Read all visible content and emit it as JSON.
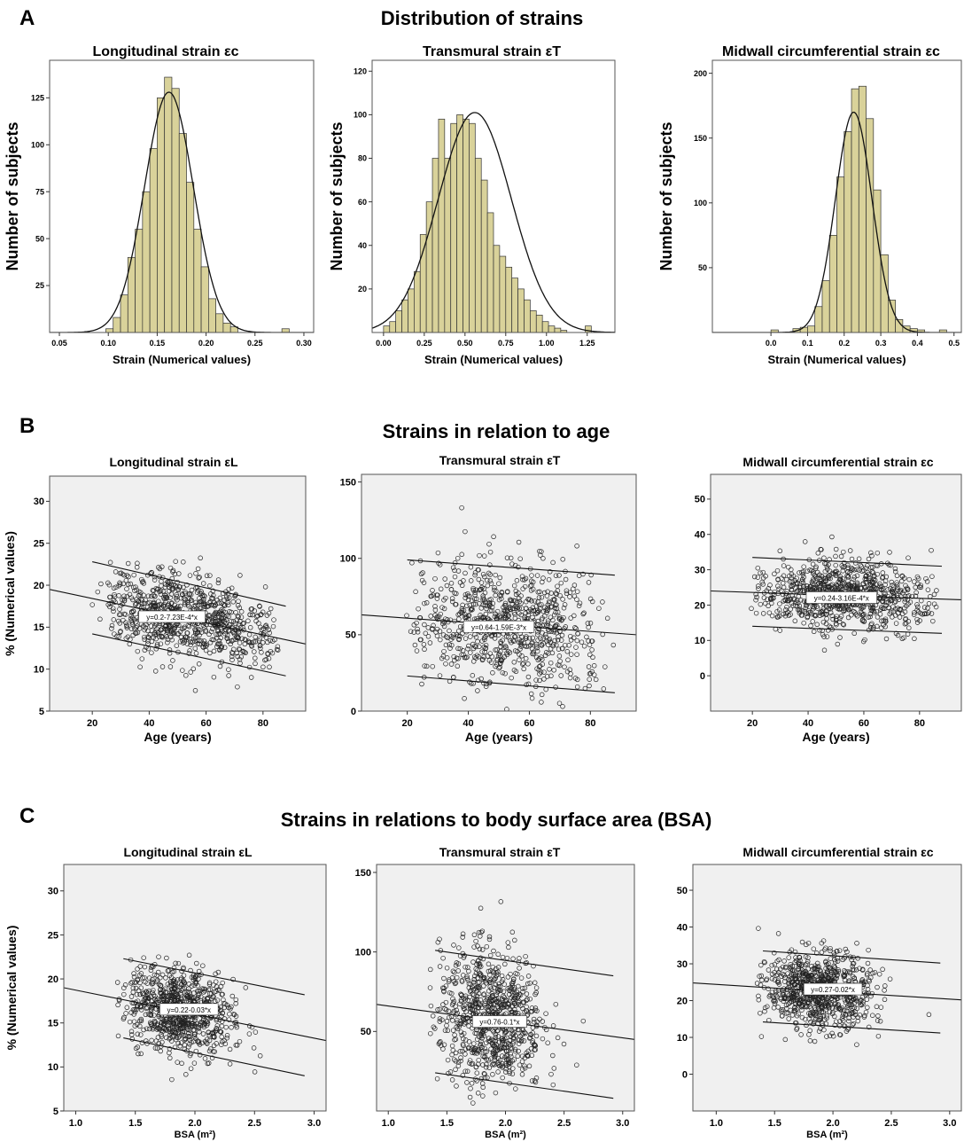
{
  "panels": [
    {
      "letter": "A",
      "title": "Distribution of strains",
      "charts": [
        {
          "title": "Longitudinal strain εc",
          "chart_data": {
            "type": "bar",
            "ylabel": "Number of subjects",
            "xlabel": "Strain  (Numerical values)",
            "xlim": [
              0.04,
              0.31
            ],
            "ylim": [
              0,
              145
            ],
            "xticks": [
              0.05,
              0.1,
              0.15,
              0.2,
              0.25,
              0.3
            ],
            "xtick_labels": [
              "0.05",
              "0.10",
              "0.15",
              "0.20",
              "0.25",
              "0.30"
            ],
            "yticks": [
              25,
              50,
              75,
              100,
              125
            ],
            "ytick_labels": [
              "25",
              "50",
              "75",
              "100",
              "125"
            ],
            "bin_width": 0.0075,
            "bin_start": 0.0975,
            "values": [
              2,
              8,
              20,
              40,
              55,
              75,
              98,
              125,
              136,
              130,
              106,
              80,
              55,
              35,
              18,
              10,
              5,
              3,
              0,
              0,
              0,
              0,
              0,
              0,
              2
            ],
            "curve": {
              "mean": 0.162,
              "sd": 0.025,
              "peak": 128
            }
          }
        },
        {
          "title": "Transmural strain εT",
          "chart_data": {
            "type": "bar",
            "ylabel": "Number of subjects",
            "xlabel": "Strain  (Numerical values)",
            "xlim": [
              -0.07,
              1.42
            ],
            "ylim": [
              0,
              125
            ],
            "xticks": [
              0,
              0.25,
              0.5,
              0.75,
              1.0,
              1.25
            ],
            "xtick_labels": [
              "0.00",
              "0.25",
              "0.50",
              "0.75",
              "1.00",
              "1.25"
            ],
            "yticks": [
              20,
              40,
              60,
              80,
              100,
              120
            ],
            "ytick_labels": [
              "20",
              "40",
              "60",
              "80",
              "100",
              "120"
            ],
            "bin_width": 0.0375,
            "bin_start": 0.0,
            "values": [
              3,
              5,
              10,
              15,
              20,
              28,
              45,
              60,
              80,
              98,
              80,
              96,
              100,
              98,
              96,
              80,
              70,
              55,
              40,
              35,
              30,
              25,
              20,
              15,
              10,
              8,
              5,
              3,
              2,
              1,
              0,
              0,
              0,
              3
            ],
            "curve": {
              "mean": 0.56,
              "sd": 0.225,
              "peak": 101
            }
          }
        },
        {
          "title": "Midwall circumferential strain  εc",
          "chart_data": {
            "type": "bar",
            "ylabel": "Number of subjects",
            "xlabel": "Strain  (Numerical values)",
            "xlim": [
              -0.16,
              0.52
            ],
            "ylim": [
              0,
              210
            ],
            "xticks": [
              0,
              0.1,
              0.2,
              0.3,
              0.4,
              0.5
            ],
            "xtick_labels": [
              "0.0",
              "0.1",
              "0.2",
              "0.3",
              "0.4",
              "0.5"
            ],
            "yticks": [
              50,
              100,
              150,
              200
            ],
            "ytick_labels": [
              "50",
              "100",
              "150",
              "200"
            ],
            "bin_width": 0.02,
            "bin_start": 0.0,
            "values": [
              2,
              0,
              0,
              3,
              4,
              5,
              20,
              40,
              75,
              120,
              155,
              188,
              190,
              165,
              110,
              60,
              25,
              10,
              5,
              3,
              2,
              0,
              0,
              2
            ],
            "curve": {
              "mean": 0.226,
              "sd": 0.05,
              "peak": 170
            }
          }
        }
      ]
    },
    {
      "letter": "B",
      "title": "Strains in relation to age",
      "charts": [
        {
          "title": "Longitudinal strain εL",
          "chart_data": {
            "type": "scatter",
            "ylabel": "% (Numerical values)",
            "xlabel": "Age (years)",
            "xlim": [
              5,
              95
            ],
            "ylim": [
              5,
              33
            ],
            "xticks": [
              20,
              40,
              60,
              80
            ],
            "xtick_labels": [
              "20",
              "40",
              "60",
              "80"
            ],
            "yticks": [
              5,
              10,
              15,
              20,
              25,
              30
            ],
            "ytick_labels": [
              "5",
              "10",
              "15",
              "20",
              "25",
              "30"
            ],
            "x_range": [
              19,
              88
            ],
            "x_mean": 50,
            "x_sd": 16,
            "y_sd": 2.4,
            "n_points": 850,
            "lines": [
              [
                5,
                19.5,
                95,
                13
              ],
              [
                20,
                22.8,
                88,
                17.5
              ],
              [
                20,
                14.2,
                88,
                9.2
              ]
            ],
            "equation": "y=0.2-7.23E-4*x",
            "equation_pos": [
              48,
              16.2
            ]
          }
        },
        {
          "title": "Transmural strain εT",
          "chart_data": {
            "type": "scatter",
            "ylabel": "",
            "xlabel": "Age (years)",
            "xlim": [
              5,
              95
            ],
            "ylim": [
              0,
              155
            ],
            "xticks": [
              20,
              40,
              60,
              80
            ],
            "xtick_labels": [
              "20",
              "40",
              "60",
              "80"
            ],
            "yticks": [
              0,
              50,
              100,
              150
            ],
            "ytick_labels": [
              "0",
              "50",
              "100",
              "150"
            ],
            "x_range": [
              19,
              88
            ],
            "x_mean": 50,
            "x_sd": 16,
            "y_sd": 21,
            "n_points": 850,
            "lines": [
              [
                5,
                63,
                95,
                50
              ],
              [
                20,
                99,
                88,
                89
              ],
              [
                20,
                23,
                88,
                12
              ]
            ],
            "equation": "y=0.64-1.59E-3*x",
            "equation_pos": [
              50,
              55
            ]
          }
        },
        {
          "title": "Midwall circumferential strain εc",
          "chart_data": {
            "type": "scatter",
            "ylabel": "",
            "xlabel": "Age (years)",
            "xlim": [
              5,
              95
            ],
            "ylim": [
              -10,
              57
            ],
            "xticks": [
              20,
              40,
              60,
              80
            ],
            "xtick_labels": [
              "20",
              "40",
              "60",
              "80"
            ],
            "yticks": [
              0,
              10,
              20,
              30,
              40,
              50
            ],
            "ytick_labels": [
              "0",
              "10",
              "20",
              "30",
              "40",
              "50"
            ],
            "x_range": [
              19,
              88
            ],
            "x_mean": 50,
            "x_sd": 16,
            "y_sd": 5,
            "n_points": 850,
            "lines": [
              [
                5,
                24,
                95,
                21.5
              ],
              [
                20,
                33.5,
                88,
                31
              ],
              [
                20,
                14,
                88,
                12
              ]
            ],
            "equation": "y=0.24-3.16E-4*x",
            "equation_pos": [
              52,
              22
            ]
          }
        }
      ]
    },
    {
      "letter": "C",
      "title": "Strains in relations to body surface area (BSA)",
      "charts": [
        {
          "title": "Longitudinal strain εL",
          "chart_data": {
            "type": "scatter",
            "ylabel": "% (Numerical values)",
            "xlabel": "BSA (m²)",
            "xlim": [
              0.9,
              3.1
            ],
            "ylim": [
              5,
              33
            ],
            "xticks": [
              1.0,
              1.5,
              2.0,
              2.5,
              3.0
            ],
            "xtick_labels": [
              "1.0",
              "1.5",
              "2.0",
              "2.5",
              "3.0"
            ],
            "yticks": [
              5,
              10,
              15,
              20,
              25,
              30
            ],
            "ytick_labels": [
              "5",
              "10",
              "15",
              "20",
              "25",
              "30"
            ],
            "x_range": [
              1.35,
              2.92
            ],
            "x_mean": 1.88,
            "x_sd": 0.22,
            "y_sd": 2.4,
            "n_points": 850,
            "lines": [
              [
                0.9,
                19,
                3.1,
                13
              ],
              [
                1.4,
                22.3,
                2.92,
                18.2
              ],
              [
                1.4,
                13.3,
                2.92,
                9
              ]
            ],
            "equation": "y=0.22-0.03*x",
            "equation_pos": [
              1.95,
              16.5
            ]
          }
        },
        {
          "title": "Transmural strain εT",
          "chart_data": {
            "type": "scatter",
            "ylabel": "",
            "xlabel": "BSA (m²)",
            "xlim": [
              0.9,
              3.1
            ],
            "ylim": [
              0,
              155
            ],
            "xticks": [
              1.0,
              1.5,
              2.0,
              2.5,
              3.0
            ],
            "xtick_labels": [
              "1.0",
              "1.5",
              "2.0",
              "2.5",
              "3.0"
            ],
            "yticks": [
              50,
              100,
              150
            ],
            "ytick_labels": [
              "50",
              "100",
              "150"
            ],
            "x_range": [
              1.35,
              2.92
            ],
            "x_mean": 1.88,
            "x_sd": 0.22,
            "y_sd": 21,
            "n_points": 850,
            "lines": [
              [
                0.9,
                67,
                3.1,
                45
              ],
              [
                1.4,
                101,
                2.92,
                85
              ],
              [
                1.4,
                24,
                2.92,
                8
              ]
            ],
            "equation": "y=0.76-0.1*x",
            "equation_pos": [
              1.95,
              56
            ]
          }
        },
        {
          "title": "Midwall circumferential strain εc",
          "chart_data": {
            "type": "scatter",
            "ylabel": "",
            "xlabel": "BSA (m²)",
            "xlim": [
              0.8,
              3.1
            ],
            "ylim": [
              -10,
              57
            ],
            "xticks": [
              1.0,
              1.5,
              2.0,
              2.5,
              3.0
            ],
            "xtick_labels": [
              "1.0",
              "1.5",
              "2.0",
              "2.5",
              "3.0"
            ],
            "yticks": [
              0,
              10,
              20,
              30,
              40,
              50
            ],
            "ytick_labels": [
              "0",
              "10",
              "20",
              "30",
              "40",
              "50"
            ],
            "x_range": [
              1.35,
              2.92
            ],
            "x_mean": 1.88,
            "x_sd": 0.22,
            "y_sd": 5,
            "n_points": 850,
            "lines": [
              [
                0.8,
                24.8,
                3.1,
                20.2
              ],
              [
                1.4,
                33.5,
                2.92,
                30.2
              ],
              [
                1.4,
                14.2,
                2.92,
                11.2
              ]
            ],
            "equation": "y=0.27-0.02*x",
            "equation_pos": [
              2.0,
              23
            ]
          }
        }
      ]
    }
  ]
}
